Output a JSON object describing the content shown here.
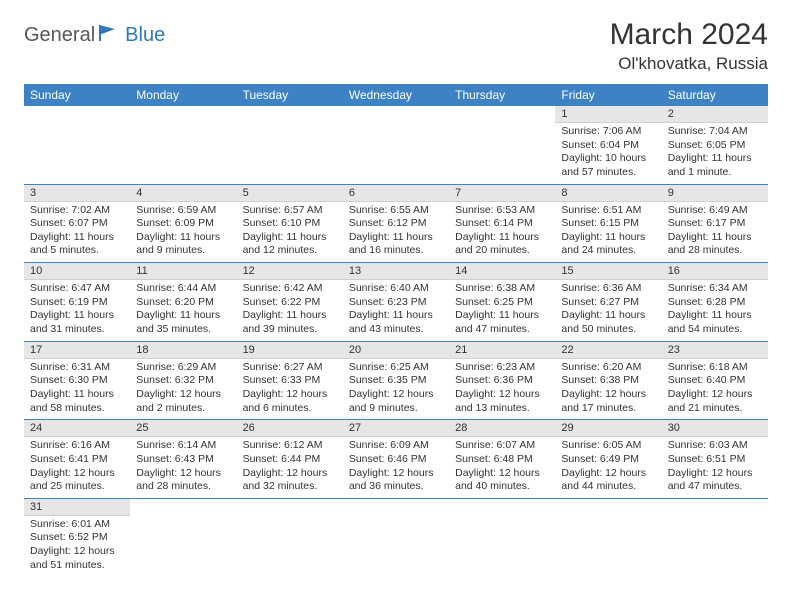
{
  "logo": {
    "text1": "General",
    "text2": "Blue"
  },
  "title": "March 2024",
  "location": "Ol'khovatka, Russia",
  "colors": {
    "header_bg": "#3c82c5",
    "header_text": "#ffffff",
    "daynum_bg": "#e6e6e6",
    "row_border": "#3c82c5",
    "logo_gray": "#55585a",
    "logo_blue": "#2f78ba"
  },
  "day_headers": [
    "Sunday",
    "Monday",
    "Tuesday",
    "Wednesday",
    "Thursday",
    "Friday",
    "Saturday"
  ],
  "weeks": [
    [
      null,
      null,
      null,
      null,
      null,
      {
        "n": "1",
        "sunrise": "7:06 AM",
        "sunset": "6:04 PM",
        "daylight": "10 hours and 57 minutes."
      },
      {
        "n": "2",
        "sunrise": "7:04 AM",
        "sunset": "6:05 PM",
        "daylight": "11 hours and 1 minute."
      }
    ],
    [
      {
        "n": "3",
        "sunrise": "7:02 AM",
        "sunset": "6:07 PM",
        "daylight": "11 hours and 5 minutes."
      },
      {
        "n": "4",
        "sunrise": "6:59 AM",
        "sunset": "6:09 PM",
        "daylight": "11 hours and 9 minutes."
      },
      {
        "n": "5",
        "sunrise": "6:57 AM",
        "sunset": "6:10 PM",
        "daylight": "11 hours and 12 minutes."
      },
      {
        "n": "6",
        "sunrise": "6:55 AM",
        "sunset": "6:12 PM",
        "daylight": "11 hours and 16 minutes."
      },
      {
        "n": "7",
        "sunrise": "6:53 AM",
        "sunset": "6:14 PM",
        "daylight": "11 hours and 20 minutes."
      },
      {
        "n": "8",
        "sunrise": "6:51 AM",
        "sunset": "6:15 PM",
        "daylight": "11 hours and 24 minutes."
      },
      {
        "n": "9",
        "sunrise": "6:49 AM",
        "sunset": "6:17 PM",
        "daylight": "11 hours and 28 minutes."
      }
    ],
    [
      {
        "n": "10",
        "sunrise": "6:47 AM",
        "sunset": "6:19 PM",
        "daylight": "11 hours and 31 minutes."
      },
      {
        "n": "11",
        "sunrise": "6:44 AM",
        "sunset": "6:20 PM",
        "daylight": "11 hours and 35 minutes."
      },
      {
        "n": "12",
        "sunrise": "6:42 AM",
        "sunset": "6:22 PM",
        "daylight": "11 hours and 39 minutes."
      },
      {
        "n": "13",
        "sunrise": "6:40 AM",
        "sunset": "6:23 PM",
        "daylight": "11 hours and 43 minutes."
      },
      {
        "n": "14",
        "sunrise": "6:38 AM",
        "sunset": "6:25 PM",
        "daylight": "11 hours and 47 minutes."
      },
      {
        "n": "15",
        "sunrise": "6:36 AM",
        "sunset": "6:27 PM",
        "daylight": "11 hours and 50 minutes."
      },
      {
        "n": "16",
        "sunrise": "6:34 AM",
        "sunset": "6:28 PM",
        "daylight": "11 hours and 54 minutes."
      }
    ],
    [
      {
        "n": "17",
        "sunrise": "6:31 AM",
        "sunset": "6:30 PM",
        "daylight": "11 hours and 58 minutes."
      },
      {
        "n": "18",
        "sunrise": "6:29 AM",
        "sunset": "6:32 PM",
        "daylight": "12 hours and 2 minutes."
      },
      {
        "n": "19",
        "sunrise": "6:27 AM",
        "sunset": "6:33 PM",
        "daylight": "12 hours and 6 minutes."
      },
      {
        "n": "20",
        "sunrise": "6:25 AM",
        "sunset": "6:35 PM",
        "daylight": "12 hours and 9 minutes."
      },
      {
        "n": "21",
        "sunrise": "6:23 AM",
        "sunset": "6:36 PM",
        "daylight": "12 hours and 13 minutes."
      },
      {
        "n": "22",
        "sunrise": "6:20 AM",
        "sunset": "6:38 PM",
        "daylight": "12 hours and 17 minutes."
      },
      {
        "n": "23",
        "sunrise": "6:18 AM",
        "sunset": "6:40 PM",
        "daylight": "12 hours and 21 minutes."
      }
    ],
    [
      {
        "n": "24",
        "sunrise": "6:16 AM",
        "sunset": "6:41 PM",
        "daylight": "12 hours and 25 minutes."
      },
      {
        "n": "25",
        "sunrise": "6:14 AM",
        "sunset": "6:43 PM",
        "daylight": "12 hours and 28 minutes."
      },
      {
        "n": "26",
        "sunrise": "6:12 AM",
        "sunset": "6:44 PM",
        "daylight": "12 hours and 32 minutes."
      },
      {
        "n": "27",
        "sunrise": "6:09 AM",
        "sunset": "6:46 PM",
        "daylight": "12 hours and 36 minutes."
      },
      {
        "n": "28",
        "sunrise": "6:07 AM",
        "sunset": "6:48 PM",
        "daylight": "12 hours and 40 minutes."
      },
      {
        "n": "29",
        "sunrise": "6:05 AM",
        "sunset": "6:49 PM",
        "daylight": "12 hours and 44 minutes."
      },
      {
        "n": "30",
        "sunrise": "6:03 AM",
        "sunset": "6:51 PM",
        "daylight": "12 hours and 47 minutes."
      }
    ],
    [
      {
        "n": "31",
        "sunrise": "6:01 AM",
        "sunset": "6:52 PM",
        "daylight": "12 hours and 51 minutes."
      },
      null,
      null,
      null,
      null,
      null,
      null
    ]
  ],
  "labels": {
    "sunrise": "Sunrise:",
    "sunset": "Sunset:",
    "daylight": "Daylight:"
  }
}
